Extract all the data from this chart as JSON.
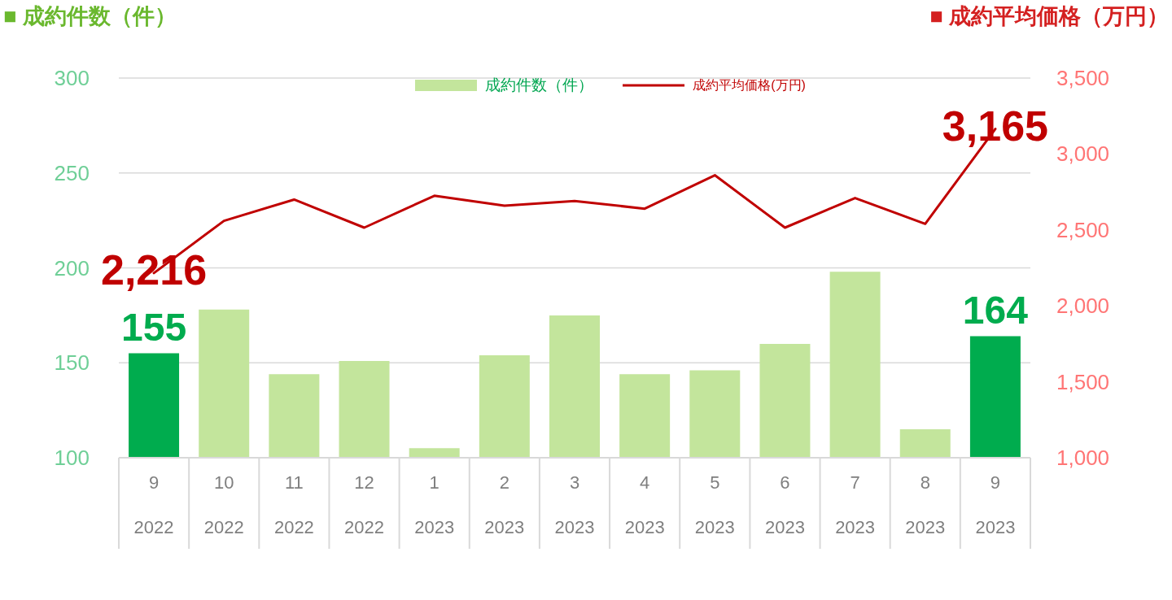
{
  "chart_data": {
    "type": "bar",
    "ylabel": "■ 成約件数（件）",
    "y2label": "■ 成約平均価格（万円）",
    "categories": [
      "9\n2022",
      "10\n2022",
      "11\n2022",
      "12\n2022",
      "1\n2023",
      "2\n2023",
      "3\n2023",
      "4\n2023",
      "5\n2023",
      "6\n2023",
      "7\n2023",
      "8\n2023",
      "9\n2023"
    ],
    "series": [
      {
        "name": "成約件数（件）",
        "color": "#c3e59c",
        "colors": [
          "#00ac4e",
          "#c3e59c",
          "#c3e59c",
          "#c3e59c",
          "#c3e59c",
          "#c3e59c",
          "#c3e59c",
          "#c3e59c",
          "#c3e59c",
          "#c3e59c",
          "#c3e59c",
          "#c3e59c",
          "#00ac4e"
        ],
        "values": [
          155,
          178,
          144,
          151,
          105,
          154,
          175,
          144,
          146,
          160,
          198,
          115,
          164
        ],
        "value_labels": [
          "155",
          null,
          null,
          null,
          null,
          null,
          null,
          null,
          null,
          null,
          null,
          null,
          "164"
        ]
      },
      {
        "name": "成約平均価格(万円)",
        "type": "line",
        "axis": "y2",
        "color": "#c00000",
        "values": [
          2216,
          2560,
          2700,
          2515,
          2725,
          2660,
          2690,
          2640,
          2860,
          2515,
          2710,
          2540,
          3165
        ],
        "value_labels": [
          "2,216",
          null,
          null,
          null,
          null,
          null,
          null,
          null,
          null,
          null,
          null,
          null,
          "3,165"
        ]
      }
    ],
    "ylim": [
      100,
      300
    ],
    "yticks": [
      100,
      150,
      200,
      250,
      300
    ],
    "y2lim": [
      1000,
      3500
    ],
    "y2ticks": [
      {
        "value": 1000,
        "label": "1,000"
      },
      {
        "value": 1500,
        "label": "1,500"
      },
      {
        "value": 2000,
        "label": "2,000"
      },
      {
        "value": 2500,
        "label": "2,500"
      },
      {
        "value": 3000,
        "label": "3,000"
      },
      {
        "value": 3500,
        "label": "3,500"
      }
    ],
    "grid": "y",
    "legend": "top"
  }
}
